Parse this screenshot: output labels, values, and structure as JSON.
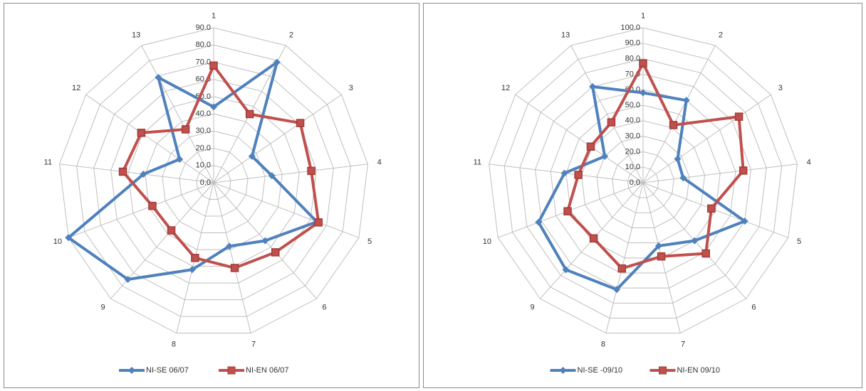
{
  "chart_data": [
    {
      "type": "radar",
      "categories": [
        "1",
        "2",
        "3",
        "4",
        "5",
        "6",
        "7",
        "8",
        "9",
        "10",
        "11",
        "12",
        "13"
      ],
      "ylim": [
        0,
        90
      ],
      "yticks": [
        {
          "value": 0,
          "label": "0.0"
        },
        {
          "value": 10,
          "label": "10.0"
        },
        {
          "value": 20,
          "label": "20.0"
        },
        {
          "value": 30,
          "label": "30.0"
        },
        {
          "value": 40,
          "label": "40.0"
        },
        {
          "value": 50,
          "label": "50.0"
        },
        {
          "value": 60,
          "label": "60.0"
        },
        {
          "value": 70,
          "label": "70.0"
        },
        {
          "value": 80,
          "label": "80.0"
        },
        {
          "value": 90,
          "label": "90.0"
        }
      ],
      "grid": true,
      "legend": "bottom",
      "series": [
        {
          "name": "NI-SE 06/07",
          "color": "#4f81bd",
          "marker": "diamond",
          "values": [
            44,
            79,
            27,
            34,
            64,
            45,
            38,
            52,
            75,
            90,
            41,
            24,
            69
          ]
        },
        {
          "name": "NI-EN 06/07",
          "color": "#c0504d",
          "marker": "square",
          "values": [
            68,
            45,
            61,
            57,
            65,
            54,
            51,
            45,
            37,
            38,
            53,
            51,
            35
          ]
        }
      ]
    },
    {
      "type": "radar",
      "categories": [
        "1",
        "2",
        "3",
        "4",
        "5",
        "6",
        "7",
        "8",
        "9",
        "10",
        "11",
        "12",
        "13"
      ],
      "ylim": [
        0,
        100
      ],
      "yticks": [
        {
          "value": 0,
          "label": "0.0"
        },
        {
          "value": 10,
          "label": "10.0"
        },
        {
          "value": 20,
          "label": "20.0"
        },
        {
          "value": 30,
          "label": "30.0"
        },
        {
          "value": 40,
          "label": "40.0"
        },
        {
          "value": 50,
          "label": "50.0"
        },
        {
          "value": 60,
          "label": "60.0"
        },
        {
          "value": 70,
          "label": "70.0"
        },
        {
          "value": 80,
          "label": "80.0"
        },
        {
          "value": 90,
          "label": "90.0"
        },
        {
          "value": 100,
          "label": "100.0"
        }
      ],
      "grid": true,
      "legend": "bottom",
      "series": [
        {
          "name": "NI-SE -09/10",
          "color": "#4f81bd",
          "marker": "diamond",
          "values": [
            58,
            60,
            27,
            26,
            70,
            50,
            42,
            71,
            75,
            72,
            51,
            30,
            70
          ]
        },
        {
          "name": "NI-EN 09/10",
          "color": "#c0504d",
          "marker": "square",
          "values": [
            77,
            42,
            75,
            65,
            47,
            61,
            49,
            57,
            48,
            52,
            42,
            41,
            44
          ]
        }
      ]
    }
  ]
}
